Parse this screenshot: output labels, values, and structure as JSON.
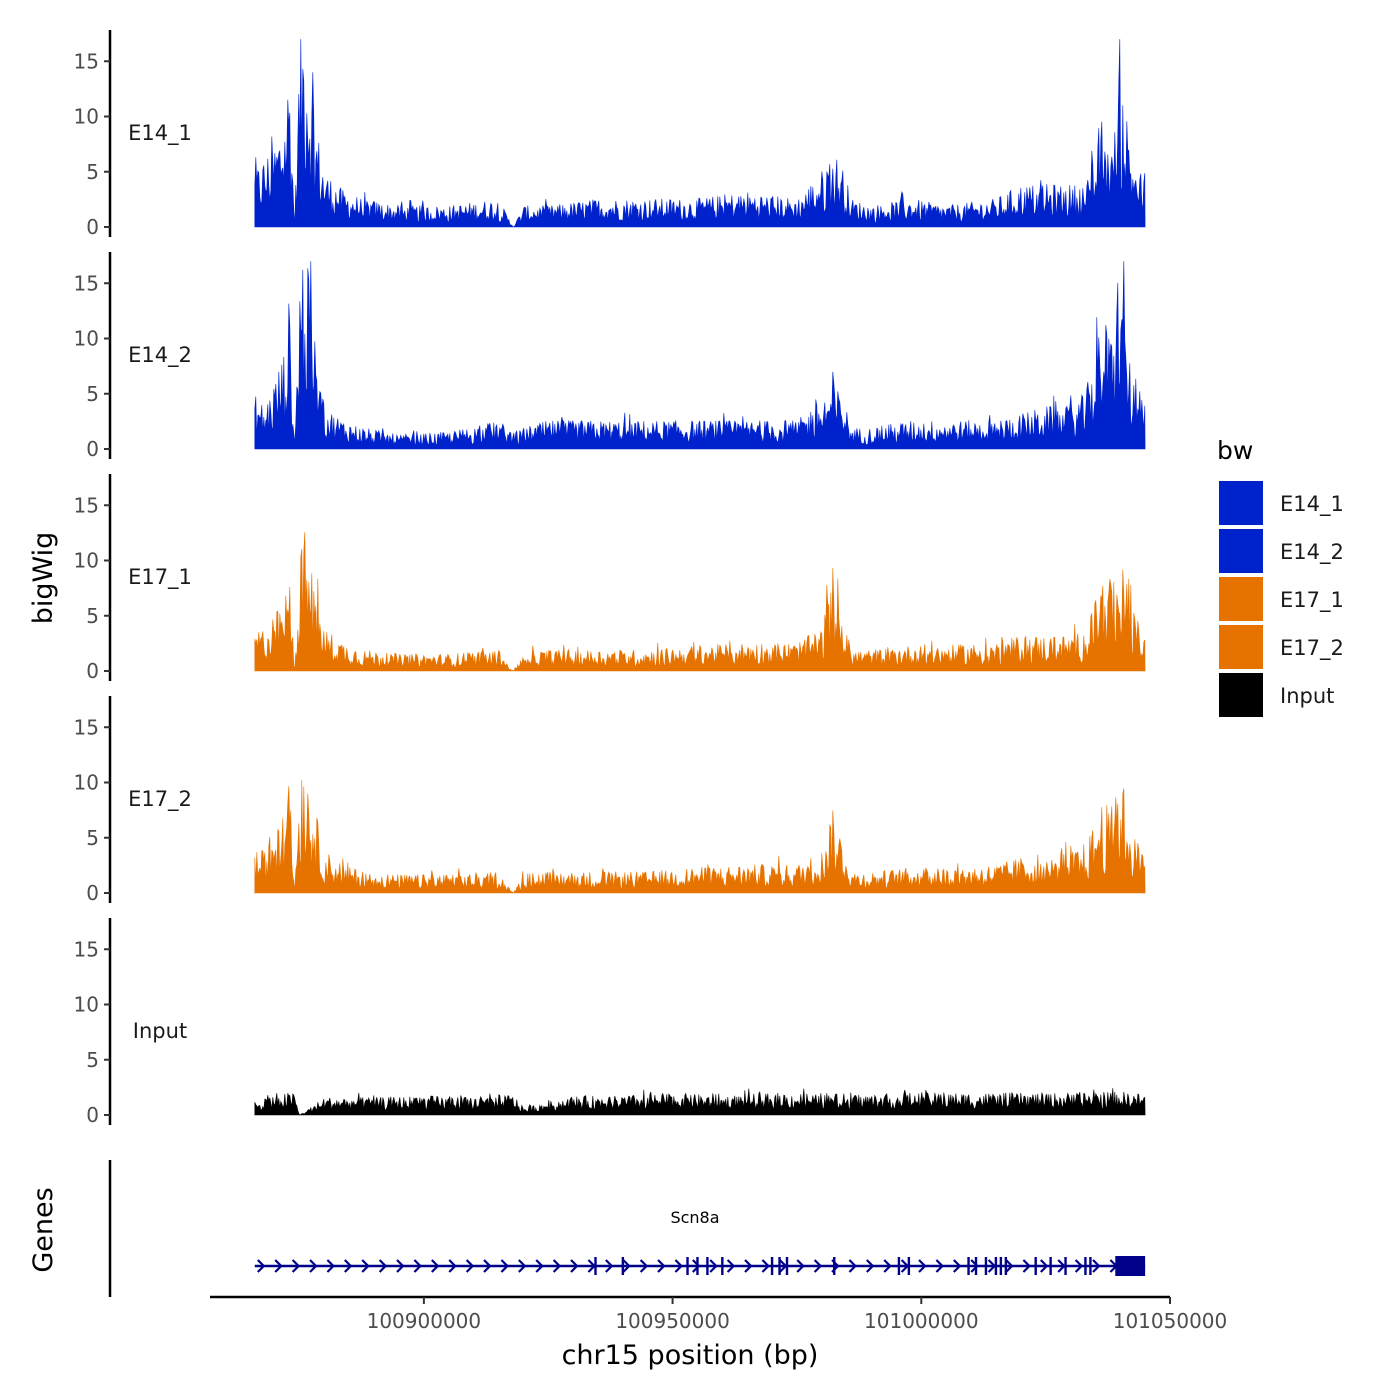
{
  "chart_data": {
    "type": "area",
    "title": "",
    "xlabel": "chr15 position (bp)",
    "ylabel": "bigWig",
    "genes_label": "Genes",
    "xlim": [
      100857000,
      101050000
    ],
    "xticks": [
      100900000,
      100950000,
      101000000,
      101050000
    ],
    "xtick_labels": [
      "100900000",
      "100950000",
      "101000000",
      "101050000"
    ],
    "ylim": [
      0,
      17
    ],
    "yticks": [
      0,
      5,
      10,
      15
    ],
    "ytick_labels": [
      "0",
      "5",
      "10",
      "15"
    ],
    "legend": {
      "title": "bw",
      "position": "right",
      "entries": [
        {
          "name": "E14_1",
          "color": "#0022cc"
        },
        {
          "name": "E14_2",
          "color": "#0022cc"
        },
        {
          "name": "E17_1",
          "color": "#e67300"
        },
        {
          "name": "E17_2",
          "color": "#e67300"
        },
        {
          "name": "Input",
          "color": "#000000"
        }
      ]
    },
    "series": [
      {
        "name": "E14_1",
        "color": "#0022cc",
        "x": [
          100866000,
          100868000,
          100870000,
          100872000,
          100873000,
          100874000,
          100875000,
          100876000,
          100878000,
          100880000,
          100884000,
          100888000,
          100895000,
          100905000,
          100915000,
          100918000,
          100920000,
          100925000,
          100935000,
          100945000,
          100955000,
          100965000,
          100975000,
          100980000,
          100982000,
          100984000,
          100986000,
          100990000,
          100998000,
          101005000,
          101015000,
          101020000,
          101025000,
          101030000,
          101033000,
          101035000,
          101036000,
          101038000,
          101039000,
          101040000,
          101041000,
          101042000,
          101043000,
          101045000
        ],
        "values": [
          4,
          5,
          6,
          8,
          12,
          0,
          13,
          16,
          8,
          4,
          2.5,
          2,
          1.5,
          1.5,
          2,
          0,
          1.5,
          1.5,
          2,
          2,
          2,
          2.5,
          2,
          4,
          5.5,
          4.5,
          2,
          1.5,
          2,
          1.5,
          2,
          3,
          3,
          3,
          3,
          5,
          8,
          6,
          7,
          13,
          9,
          6,
          5,
          3
        ]
      },
      {
        "name": "E14_2",
        "color": "#0022cc",
        "x": [
          100866000,
          100868000,
          100870000,
          100872000,
          100873000,
          100874000,
          100875000,
          100876000,
          100878000,
          100880000,
          100884000,
          100888000,
          100895000,
          100905000,
          100915000,
          100918000,
          100920000,
          100925000,
          100935000,
          100945000,
          100955000,
          100965000,
          100975000,
          100980000,
          100982000,
          100984000,
          100986000,
          100990000,
          100998000,
          101005000,
          101015000,
          101020000,
          101025000,
          101030000,
          101033000,
          101035000,
          101036000,
          101038000,
          101039000,
          101040000,
          101041000,
          101042000,
          101043000,
          101045000
        ],
        "values": [
          4,
          3,
          5,
          7,
          11,
          0,
          13,
          15,
          8,
          3,
          2,
          1.5,
          1,
          1.2,
          2,
          1.2,
          1.5,
          2,
          2,
          2,
          2,
          2,
          2,
          3.5,
          4.5,
          4,
          1.5,
          1.5,
          2,
          2,
          2,
          2.5,
          3,
          3,
          4,
          7,
          10,
          8,
          9,
          17,
          9,
          6,
          5,
          3
        ]
      },
      {
        "name": "E17_1",
        "color": "#e67300",
        "x": [
          100866000,
          100868000,
          100870000,
          100872000,
          100873000,
          100874000,
          100875000,
          100876000,
          100878000,
          100880000,
          100884000,
          100888000,
          100895000,
          100905000,
          100915000,
          100918000,
          100920000,
          100925000,
          100935000,
          100945000,
          100955000,
          100965000,
          100975000,
          100980000,
          100982000,
          100984000,
          100986000,
          100990000,
          100998000,
          101005000,
          101015000,
          101020000,
          101025000,
          101030000,
          101033000,
          101035000,
          101036000,
          101038000,
          101039000,
          101040000,
          101041000,
          101042000,
          101043000,
          101045000
        ],
        "values": [
          3,
          3,
          4,
          5,
          7,
          0,
          8,
          10,
          6,
          3,
          2,
          1.5,
          1.2,
          1.2,
          1.5,
          0,
          1.3,
          1.5,
          1.5,
          1.5,
          1.8,
          2,
          2,
          3,
          6.5,
          4,
          1.5,
          1.5,
          1.8,
          1.8,
          2,
          2.5,
          2.5,
          2.5,
          3,
          5,
          7,
          6,
          6.5,
          8,
          7,
          5,
          4,
          2.5
        ]
      },
      {
        "name": "E17_2",
        "color": "#e67300",
        "x": [
          100866000,
          100868000,
          100870000,
          100872000,
          100873000,
          100874000,
          100875000,
          100876000,
          100878000,
          100880000,
          100884000,
          100888000,
          100895000,
          100905000,
          100915000,
          100918000,
          100920000,
          100925000,
          100935000,
          100945000,
          100955000,
          100965000,
          100975000,
          100980000,
          100982000,
          100984000,
          100986000,
          100990000,
          100998000,
          101005000,
          101015000,
          101020000,
          101025000,
          101030000,
          101033000,
          101035000,
          101036000,
          101038000,
          101039000,
          101040000,
          101041000,
          101042000,
          101043000,
          101045000
        ],
        "values": [
          3,
          3,
          4,
          6,
          8,
          0,
          9,
          10,
          6,
          3,
          2,
          1.5,
          1.3,
          1.3,
          1.5,
          0,
          1.4,
          1.5,
          1.5,
          1.5,
          1.8,
          2,
          2,
          3,
          6,
          4,
          1.5,
          1.5,
          1.8,
          1.8,
          2,
          2.5,
          2.5,
          3,
          3.5,
          5,
          6.5,
          6,
          6.5,
          9,
          7,
          5,
          4,
          2.5
        ]
      },
      {
        "name": "Input",
        "color": "#000000",
        "x": [
          100866000,
          100870000,
          100874000,
          100875000,
          100880000,
          100890000,
          100900000,
          100910000,
          100918000,
          100920000,
          100930000,
          100940000,
          100950000,
          100960000,
          100970000,
          100980000,
          100990000,
          101000000,
          101010000,
          101020000,
          101030000,
          101035000,
          101040000,
          101045000
        ],
        "values": [
          1,
          1.5,
          1.5,
          0,
          1.2,
          1.2,
          1.3,
          1.2,
          1.4,
          0.5,
          1.3,
          1.3,
          1.5,
          1.3,
          1.5,
          1.5,
          1.4,
          1.5,
          1.5,
          1.5,
          1.5,
          1.6,
          1.6,
          1.4
        ]
      }
    ],
    "gene": {
      "name": "Scn8a",
      "strand": "+",
      "start": 100866000,
      "end": 101045000,
      "utr_start": 101039000,
      "exons": [
        100934500,
        100940000,
        100953000,
        100955000,
        100957000,
        100960000,
        100970000,
        100971500,
        100973000,
        100982500,
        100995500,
        100997500,
        101009500,
        101011000,
        101013000,
        101015000,
        101016000,
        101017000,
        101023000,
        101026000,
        101029000,
        101033000,
        101034000
      ]
    }
  }
}
